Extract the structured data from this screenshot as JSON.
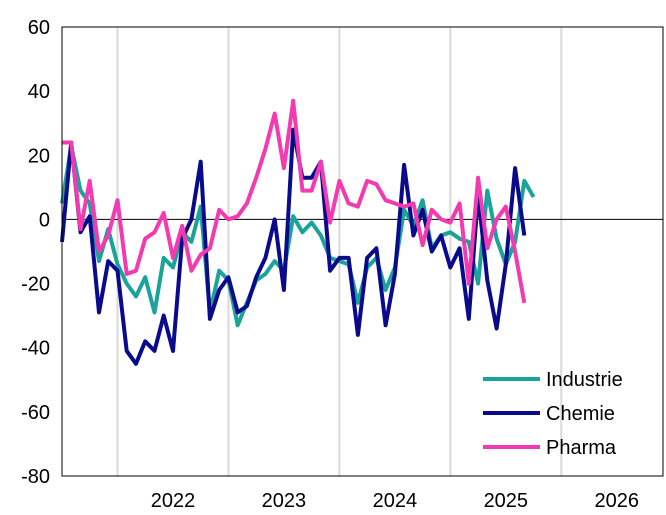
{
  "chart_data": {
    "type": "line",
    "title": "",
    "xlabel": "",
    "ylabel": "",
    "ylim": [
      -80,
      60
    ],
    "yticks": [
      -80,
      -60,
      -40,
      -20,
      0,
      20,
      40,
      60
    ],
    "xlim": [
      "2021-07",
      "2026-12"
    ],
    "xticks": [
      "2022",
      "2023",
      "2024",
      "2025",
      "2026"
    ],
    "grid": {
      "vertical": true,
      "horizontal": false,
      "zero_line": true
    },
    "legend": {
      "position": "bottom-right"
    },
    "x": [
      "2021-07",
      "2021-08",
      "2021-09",
      "2021-10",
      "2021-11",
      "2021-12",
      "2022-01",
      "2022-02",
      "2022-03",
      "2022-04",
      "2022-05",
      "2022-06",
      "2022-07",
      "2022-08",
      "2022-09",
      "2022-10",
      "2022-11",
      "2022-12",
      "2023-01",
      "2023-02",
      "2023-03",
      "2023-04",
      "2023-05",
      "2023-06",
      "2023-07",
      "2023-08",
      "2023-09",
      "2023-10",
      "2023-11",
      "2023-12",
      "2024-01",
      "2024-02",
      "2024-03",
      "2024-04",
      "2024-05",
      "2024-06",
      "2024-07",
      "2024-08",
      "2024-09",
      "2024-10",
      "2024-11",
      "2024-12",
      "2025-01",
      "2025-02",
      "2025-03",
      "2025-04",
      "2025-05",
      "2025-06",
      "2025-07",
      "2025-08",
      "2025-09",
      "2025-10",
      "2025-11",
      "2025-12",
      "2026-01",
      "2026-02",
      "2026-03",
      "2026-04",
      "2026-05",
      "2026-06",
      "2026-07",
      "2026-08"
    ],
    "series": [
      {
        "name": "Industrie",
        "color": "#1aa39a",
        "values": [
          5,
          23,
          9,
          5,
          -13,
          -3,
          -14,
          -20,
          -24,
          -18,
          -29,
          -12,
          -15,
          -4,
          -7,
          4,
          -29,
          -16,
          -19,
          -33,
          -26,
          -19,
          -17,
          -13,
          -16,
          1,
          -4,
          -1,
          -5,
          -12,
          -13,
          -14,
          -26,
          -15,
          -12,
          -22,
          -15,
          3,
          -2,
          6,
          -9,
          -5,
          -4,
          -6,
          -7,
          -20,
          9,
          -6,
          -14,
          -7,
          12,
          7,
          null,
          null,
          null,
          null,
          null,
          null,
          null,
          null,
          null,
          null
        ]
      },
      {
        "name": "Chemie",
        "color": "#0a0a8c",
        "values": [
          -7,
          24,
          -4,
          1,
          -29,
          -13,
          -16,
          -41,
          -45,
          -38,
          -41,
          -30,
          -41,
          -6,
          0,
          18,
          -31,
          -22,
          -18,
          -29,
          -27,
          -18,
          -12,
          0,
          -22,
          28,
          13,
          13,
          18,
          -16,
          -12,
          -12,
          -36,
          -12,
          -9,
          -33,
          -17,
          17,
          -5,
          3,
          -10,
          -5,
          -15,
          -9,
          -31,
          8,
          -19,
          -34,
          -14,
          16,
          -5,
          null,
          null,
          null,
          null,
          null,
          null,
          null,
          null,
          null,
          null,
          null
        ]
      },
      {
        "name": "Pharma",
        "color": "#f23ab1",
        "values": [
          24,
          24,
          -3,
          12,
          -10,
          -5,
          6,
          -17,
          -16,
          -6,
          -4,
          2,
          -12,
          -2,
          -16,
          -11,
          -9,
          3,
          0,
          1,
          5,
          13,
          22,
          33,
          16,
          37,
          9,
          9,
          18,
          -1,
          12,
          5,
          4,
          12,
          11,
          6,
          5,
          4,
          5,
          -8,
          3,
          0,
          -1,
          5,
          -20,
          13,
          -9,
          0,
          4,
          -10,
          -26,
          null,
          null,
          null,
          null,
          null,
          null,
          null,
          null,
          null,
          null,
          null
        ]
      }
    ]
  }
}
